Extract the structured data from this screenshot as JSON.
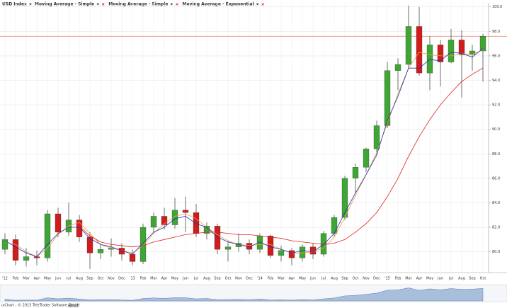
{
  "chart_data": {
    "type": "candlestick",
    "title": "USD Index",
    "categories": [
      "'12",
      "Feb",
      "Mar",
      "Apr",
      "May",
      "Jun",
      "Jul",
      "Aug",
      "Sep",
      "Oct",
      "Nov",
      "Dec",
      "'13",
      "Feb",
      "Mar",
      "Apr",
      "May",
      "Jun",
      "Jul",
      "Aug",
      "Sep",
      "Oct",
      "Nov",
      "Dec",
      "'14",
      "Feb",
      "Mar",
      "Apr",
      "May",
      "Jun",
      "Jul",
      "Aug",
      "Sep",
      "Oct",
      "Nov",
      "Dec",
      "'15",
      "Feb",
      "Mar",
      "Apr",
      "May",
      "Jun",
      "Jul",
      "Aug",
      "Sep",
      "Oct"
    ],
    "open": [
      80.2,
      81.0,
      79.3,
      79.6,
      79.5,
      83.1,
      81.6,
      82.6,
      81.2,
      79.9,
      80.2,
      80.3,
      79.8,
      79.2,
      82.0,
      82.9,
      82.2,
      83.4,
      83.2,
      81.5,
      82.1,
      80.2,
      80.4,
      80.7,
      80.2,
      81.3,
      79.7,
      80.1,
      79.5,
      80.4,
      79.8,
      81.5,
      82.8,
      86.0,
      86.9,
      88.4,
      90.3,
      94.8,
      95.3,
      98.4,
      94.6,
      96.9,
      95.5,
      97.3,
      96.1,
      96.4
    ],
    "high": [
      81.5,
      81.4,
      80.3,
      80.1,
      83.4,
      83.6,
      84.0,
      83.0,
      81.6,
      80.6,
      81.1,
      80.7,
      80.2,
      82.3,
      83.2,
      83.6,
      84.4,
      84.5,
      83.9,
      82.4,
      82.3,
      80.9,
      81.5,
      81.0,
      81.5,
      81.4,
      80.5,
      80.3,
      80.6,
      80.7,
      81.7,
      83.0,
      86.2,
      87.2,
      88.5,
      90.7,
      95.5,
      95.8,
      100.1,
      100.0,
      97.6,
      97.3,
      98.2,
      98.1,
      96.9,
      97.8
    ],
    "low": [
      79.8,
      78.9,
      78.8,
      78.9,
      79.2,
      81.2,
      81.3,
      80.8,
      78.6,
      79.4,
      79.6,
      79.3,
      78.9,
      79.0,
      81.6,
      81.8,
      81.9,
      81.6,
      81.2,
      81.0,
      79.8,
      79.2,
      80.0,
      79.8,
      79.9,
      79.5,
      79.2,
      78.9,
      79.2,
      79.4,
      79.6,
      81.2,
      82.6,
      84.8,
      86.5,
      87.9,
      90.1,
      93.2,
      95.0,
      94.4,
      93.2,
      93.5,
      95.4,
      92.6,
      94.8,
      93.9
    ],
    "close": [
      81.0,
      79.3,
      79.6,
      79.5,
      83.1,
      81.6,
      82.6,
      81.2,
      79.9,
      80.2,
      80.3,
      79.8,
      79.2,
      82.0,
      82.9,
      82.2,
      83.4,
      83.2,
      81.5,
      82.1,
      80.2,
      80.4,
      80.7,
      80.2,
      81.3,
      79.7,
      80.1,
      79.5,
      80.4,
      79.8,
      81.5,
      82.8,
      86.0,
      86.9,
      88.4,
      90.3,
      94.8,
      95.3,
      98.4,
      94.6,
      96.9,
      95.5,
      97.3,
      96.1,
      96.4,
      97.6
    ],
    "up_color": "#3fa535",
    "down_color": "#d01c1c",
    "last_line_color": "#e8806a",
    "series": [
      {
        "name": "Moving Average - Simple",
        "color": "#f0a030",
        "values": [
          80.8,
          80.6,
          80.0,
          79.6,
          80.3,
          81.4,
          82.1,
          82.4,
          81.5,
          80.6,
          80.3,
          80.1,
          79.9,
          80.5,
          81.5,
          82.3,
          82.9,
          83.1,
          82.7,
          82.0,
          81.4,
          80.9,
          80.6,
          80.5,
          80.6,
          80.6,
          80.2,
          79.9,
          79.9,
          80.0,
          80.3,
          81.2,
          82.8,
          84.6,
          86.3,
          88.1,
          90.5,
          92.9,
          95.0,
          96.3,
          96.1,
          96.0,
          96.0,
          96.2,
          96.1,
          96.5
        ]
      },
      {
        "name": "Moving Average - Simple",
        "color": "#e02020",
        "values": [
          null,
          null,
          null,
          null,
          null,
          null,
          null,
          82.1,
          81.3,
          80.8,
          80.6,
          80.5,
          80.4,
          80.5,
          80.8,
          81.0,
          81.2,
          81.4,
          81.5,
          81.6,
          81.6,
          81.5,
          81.4,
          81.4,
          81.3,
          81.2,
          81.1,
          80.9,
          80.8,
          80.7,
          80.6,
          80.7,
          81.0,
          81.6,
          82.3,
          83.2,
          84.5,
          86.0,
          87.8,
          89.4,
          90.8,
          92.0,
          93.0,
          93.9,
          94.5,
          95.0
        ]
      },
      {
        "name": "Moving Average - Exponential",
        "color": "#2030c0",
        "values": [
          80.9,
          80.4,
          79.9,
          79.6,
          80.6,
          81.5,
          82.0,
          82.0,
          81.1,
          80.6,
          80.4,
          80.1,
          79.8,
          80.7,
          81.6,
          82.0,
          82.7,
          82.9,
          82.3,
          82.0,
          81.2,
          80.8,
          80.6,
          80.4,
          80.8,
          80.4,
          80.2,
          79.9,
          80.1,
          80.0,
          80.6,
          81.5,
          83.2,
          84.8,
          86.3,
          87.9,
          90.7,
          92.7,
          95.0,
          95.0,
          95.7,
          95.6,
          96.3,
          96.2,
          95.9,
          96.6
        ]
      }
    ],
    "ylim": [
      78.3,
      100.1
    ],
    "yticks": [
      {
        "value": 80,
        "label": "80.0"
      },
      {
        "value": 82,
        "label": "82.0"
      },
      {
        "value": 84,
        "label": "84.0"
      },
      {
        "value": 86,
        "label": "86.0"
      },
      {
        "value": 88,
        "label": "88.0"
      },
      {
        "value": 90,
        "label": "90.0"
      },
      {
        "value": 92,
        "label": "92.0"
      },
      {
        "value": 94,
        "label": "94.0"
      },
      {
        "value": 96,
        "label": "96.0"
      },
      {
        "value": 98,
        "label": "98.0"
      },
      {
        "value": 100,
        "label": "100.0"
      }
    ],
    "grid": true
  },
  "footer": {
    "copyright": "ixChart - © 2015 TeleTrader Software GmbH",
    "link": "About"
  }
}
